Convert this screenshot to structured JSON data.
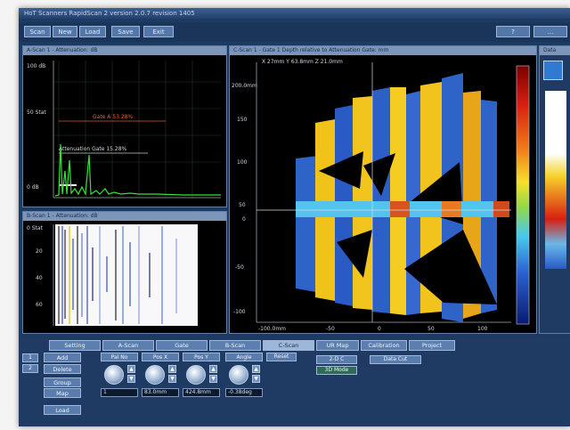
{
  "app": {
    "title": "HoT Scanners RapidScan 2 version 2.0.7 revision 1405",
    "toolbar": [
      "Scan",
      "New",
      "Load",
      "Save",
      "Exit"
    ],
    "toolbar_right": [
      "?",
      "..."
    ]
  },
  "panels": {
    "ascan": {
      "title": "A-Scan 1 - Attenuation: dB",
      "y_ticks": [
        "100 dB",
        "50 Stat",
        "0 dB"
      ],
      "gate_a_label": "Gate A 53.28%",
      "gate_b_label": "Attenuation Gate 15.28%"
    },
    "bscan": {
      "title": "B-Scan 1 - Attenuation: dB",
      "y_ticks": [
        "0 Stat",
        "20",
        "40",
        "60"
      ]
    },
    "cscan": {
      "title": "C-Scan 1 - Gate 1 Depth relative to Attenuation Gate: mm",
      "readout": "X 27mm  Y 63.8mm  Z 21.0mm",
      "y_ticks": [
        "200.0mm",
        "150",
        "100",
        "50",
        "0",
        "-50",
        "-100"
      ],
      "x_ticks": [
        "-100.0mm",
        "-50",
        "0",
        "50",
        "100"
      ]
    },
    "side_label": "Data"
  },
  "tabs": [
    "Setting",
    "A-Scan",
    "Gate",
    "B-Scan",
    "C-Scan",
    "UR Map",
    "Calibration",
    "Project"
  ],
  "active_tab": "C-Scan",
  "left_buttons": [
    "Add",
    "Delete",
    "Group",
    "Map",
    "Load"
  ],
  "side_tabs": [
    "1",
    "2"
  ],
  "controls": [
    {
      "label": "Pal No",
      "value": "1"
    },
    {
      "label": "Pos X",
      "value": "83.0mm"
    },
    {
      "label": "Pos Y",
      "value": "424.8mm"
    },
    {
      "label": "Angle",
      "value": "-0.38deg"
    }
  ],
  "extra_buttons": {
    "reset": "Reset",
    "mode_2d": "2-D C",
    "mode_3d": "3D Mode",
    "data_cut": "Data Cut"
  },
  "colors": {
    "accent": "#1d3a63",
    "active_tab": "#9db7da",
    "signal": "#37e13a"
  }
}
